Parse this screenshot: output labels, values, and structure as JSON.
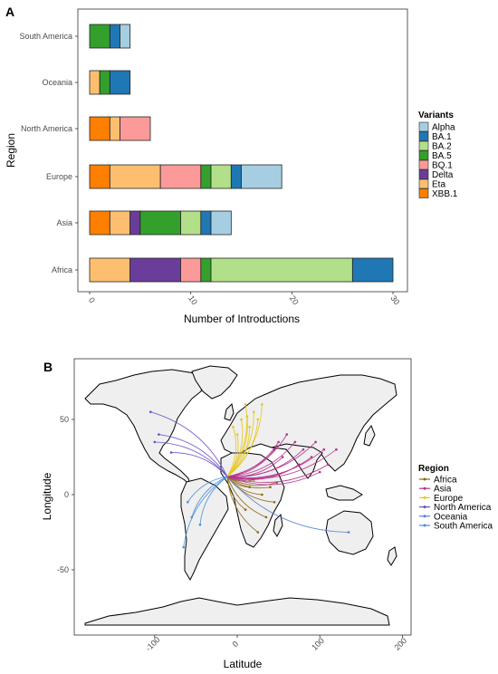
{
  "panel_a": {
    "letter": "A",
    "chart_data": {
      "type": "bar",
      "orientation": "horizontal",
      "stacked": true,
      "categories": [
        "South America",
        "Oceania",
        "North America",
        "Europe",
        "Asia",
        "Africa"
      ],
      "stack_order": [
        "XBB.1",
        "Eta",
        "Delta",
        "BQ.1",
        "BA.5",
        "BA.2",
        "BA.1",
        "Alpha"
      ],
      "series": [
        {
          "name": "Alpha",
          "color": "#a6cee3",
          "values": [
            1,
            0,
            0,
            4,
            2,
            0
          ]
        },
        {
          "name": "BA.1",
          "color": "#1f78b4",
          "values": [
            1,
            2,
            0,
            1,
            1,
            4
          ]
        },
        {
          "name": "BA.2",
          "color": "#b2df8a",
          "values": [
            0,
            0,
            0,
            2,
            2,
            14
          ]
        },
        {
          "name": "BA.5",
          "color": "#33a02c",
          "values": [
            2,
            1,
            0,
            1,
            4,
            1
          ]
        },
        {
          "name": "BQ.1",
          "color": "#fb9a99",
          "values": [
            0,
            0,
            3,
            4,
            0,
            2
          ]
        },
        {
          "name": "Delta",
          "color": "#6a3d9a",
          "values": [
            0,
            0,
            0,
            0,
            1,
            5
          ]
        },
        {
          "name": "Eta",
          "color": "#fdbf6f",
          "values": [
            0,
            1,
            1,
            5,
            2,
            4
          ]
        },
        {
          "name": "XBB.1",
          "color": "#ff7f00",
          "values": [
            0,
            0,
            2,
            2,
            2,
            0
          ]
        }
      ],
      "xlabel": "Number of Introductions",
      "ylabel": "Region",
      "xlim": [
        0,
        30
      ],
      "xticks": [
        "0",
        "10",
        "20",
        "30"
      ],
      "legend_title": "Variants",
      "legend_position": "right"
    }
  },
  "panel_b": {
    "letter": "B",
    "chart_data": {
      "type": "map",
      "xlabel": "Latitude",
      "ylabel": "Longitude",
      "xlim": [
        -180,
        200
      ],
      "ylim": [
        -90,
        90
      ],
      "xticks": [
        "-100",
        "0",
        "100",
        "200"
      ],
      "yticks": [
        "50",
        "0",
        "-50"
      ],
      "legend_title": "Region",
      "legend_position": "right",
      "origin": [
        -12,
        12
      ],
      "series": [
        {
          "name": "Africa",
          "color": "#8b6914",
          "destinations": [
            [
              35,
              -15
            ],
            [
              25,
              -25
            ],
            [
              40,
              5
            ],
            [
              30,
              0
            ],
            [
              20,
              10
            ],
            [
              45,
              -5
            ],
            [
              10,
              -10
            ],
            [
              15,
              5
            ],
            [
              48,
              8
            ]
          ]
        },
        {
          "name": "Asia",
          "color": "#b5318e",
          "destinations": [
            [
              45,
              30
            ],
            [
              55,
              25
            ],
            [
              75,
              20
            ],
            [
              70,
              35
            ],
            [
              90,
              25
            ],
            [
              100,
              15
            ],
            [
              110,
              20
            ],
            [
              120,
              30
            ],
            [
              60,
              40
            ],
            [
              80,
              30
            ],
            [
              50,
              35
            ],
            [
              105,
              30
            ],
            [
              95,
              35
            ]
          ]
        },
        {
          "name": "Europe",
          "color": "#e6c619",
          "destinations": [
            [
              10,
              60
            ],
            [
              20,
              55
            ],
            [
              5,
              50
            ],
            [
              15,
              45
            ],
            [
              25,
              50
            ],
            [
              0,
              40
            ],
            [
              30,
              60
            ],
            [
              -5,
              45
            ],
            [
              12,
              52
            ]
          ]
        },
        {
          "name": "North America",
          "color": "#6a4fc8",
          "destinations": [
            [
              -105,
              55
            ],
            [
              -95,
              40
            ],
            [
              -80,
              28
            ],
            [
              -100,
              35
            ]
          ]
        },
        {
          "name": "Oceania",
          "color": "#5a7fd0",
          "destinations": [
            [
              135,
              -25
            ]
          ]
        },
        {
          "name": "South America",
          "color": "#4a90d9",
          "destinations": [
            [
              -55,
              -15
            ],
            [
              -65,
              -35
            ],
            [
              -60,
              -5
            ],
            [
              -45,
              -20
            ]
          ]
        }
      ]
    }
  }
}
